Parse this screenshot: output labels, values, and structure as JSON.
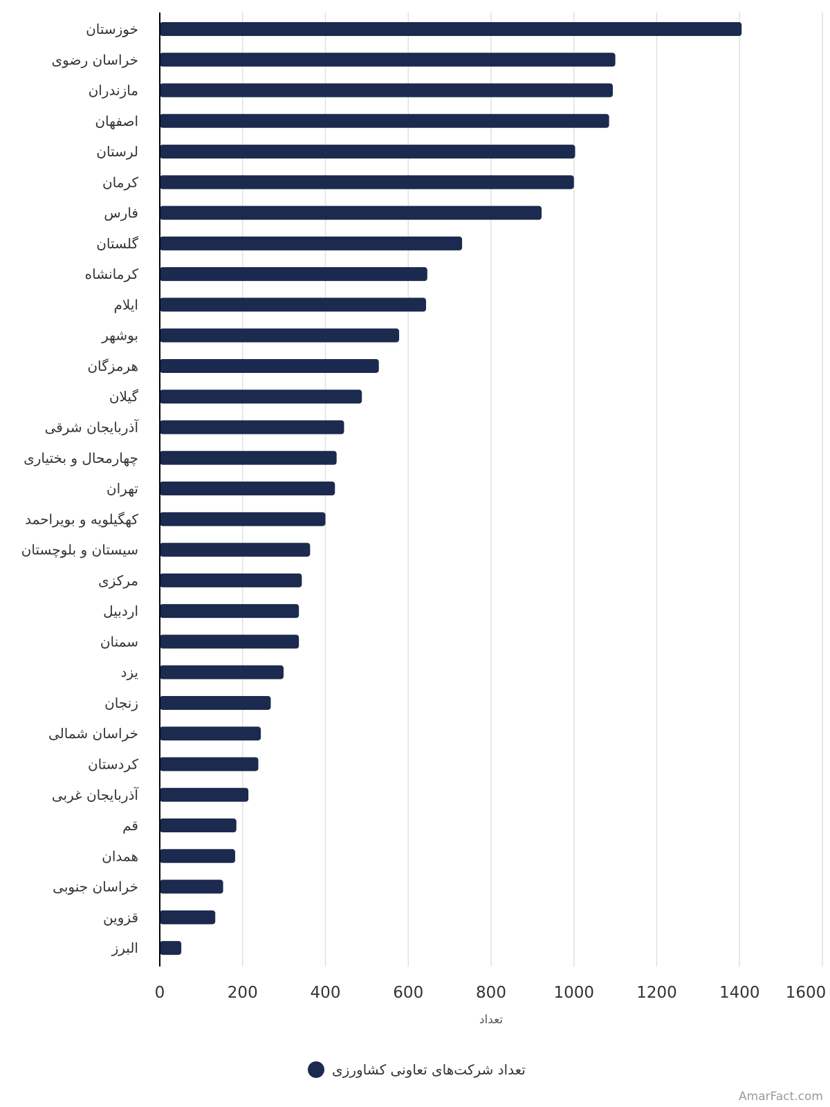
{
  "chart_data": {
    "type": "bar",
    "orientation": "horizontal",
    "categories": [
      "خوزستان",
      "خراسان رضوی",
      "مازندران",
      "اصفهان",
      "لرستان",
      "کرمان",
      "فارس",
      "گلستان",
      "کرمانشاه",
      "ایلام",
      "بوشهر",
      "هرمزگان",
      "گیلان",
      "آذربایجان شرقی",
      "چهارمحال و بختیاری",
      "تهران",
      "کهگیلویه و بویراحمد",
      "سیستان و بلوچستان",
      "مرکزی",
      "اردبیل",
      "سمنان",
      "یزد",
      "زنجان",
      "خراسان شمالی",
      "کردستان",
      "آذربایجان غربی",
      "قم",
      "همدان",
      "خراسان جنوبی",
      "قزوین",
      "البرز"
    ],
    "series": [
      {
        "name": "تعداد شرکت‌های تعاونی کشاورزی",
        "color": "#1b2a4e",
        "values": [
          1405,
          1100,
          1094,
          1085,
          1003,
          1000,
          922,
          730,
          646,
          643,
          578,
          529,
          488,
          445,
          427,
          423,
          400,
          363,
          343,
          336,
          336,
          299,
          268,
          244,
          238,
          214,
          185,
          182,
          153,
          134,
          52
        ]
      }
    ],
    "xlabel": "تعداد",
    "ylabel": "",
    "xlim": [
      0,
      1600
    ],
    "x_ticks": [
      "0",
      "200",
      "400",
      "600",
      "800",
      "1000",
      "1200",
      "1400",
      "1600"
    ],
    "grid": "vertical",
    "legend_position": "bottom-center"
  },
  "credit": "AmarFact.com",
  "colors": {
    "bar": "#1b2a4e",
    "grid": "#e0e0e0",
    "axis": "#000000",
    "text": "#333333"
  }
}
